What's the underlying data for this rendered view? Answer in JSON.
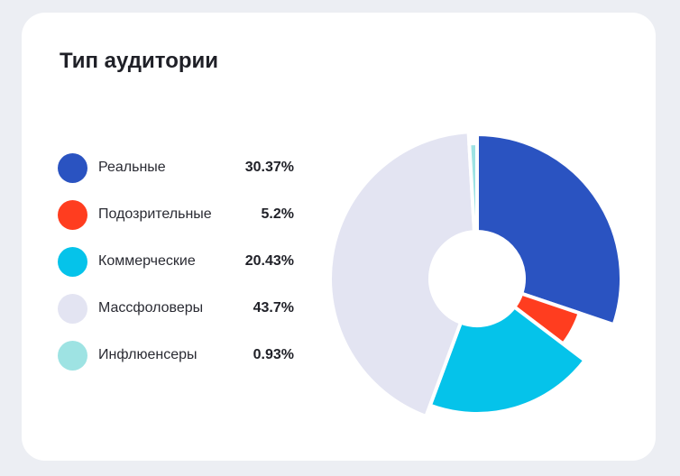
{
  "card": {
    "title": "Тип аудитории"
  },
  "chart_data": {
    "type": "pie",
    "title": "Тип аудитории",
    "categories": [
      "Реальные",
      "Подозрительные",
      "Коммерческие",
      "Массфоловеры",
      "Инфлюенсеры"
    ],
    "values": [
      30.37,
      5.2,
      20.43,
      43.7,
      0.93
    ],
    "value_labels": [
      "30.37%",
      "5.2%",
      "20.43%",
      "43.7%",
      "0.93%"
    ],
    "colors": [
      "#2a53c1",
      "#ff3d1f",
      "#05c3ea",
      "#e3e4f2",
      "#9ee3e3"
    ],
    "legend": "left",
    "donut": true
  },
  "legend": [
    {
      "label": "Реальные",
      "value": "30.37%",
      "color": "#2a53c1"
    },
    {
      "label": "Подозрительные",
      "value": "5.2%",
      "color": "#ff3d1f"
    },
    {
      "label": "Коммерческие",
      "value": "20.43%",
      "color": "#05c3ea"
    },
    {
      "label": "Массфоловеры",
      "value": "43.7%",
      "color": "#e3e4f2"
    },
    {
      "label": "Инфлюенсеры",
      "value": "0.93%",
      "color": "#9ee3e3"
    }
  ]
}
